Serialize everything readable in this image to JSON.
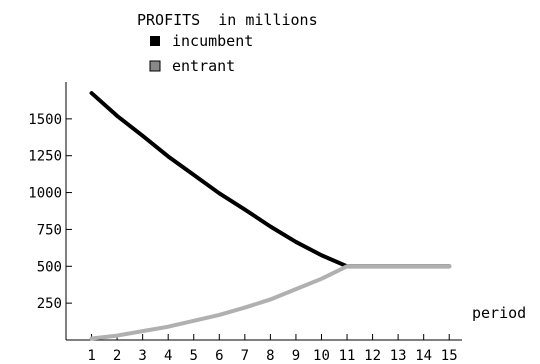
{
  "chart_data": {
    "type": "line",
    "title": "PROFITS  in millions",
    "xlabel": "period",
    "ylabel": "",
    "x": [
      1,
      2,
      3,
      4,
      5,
      6,
      7,
      8,
      9,
      10,
      11,
      12,
      13,
      14,
      15
    ],
    "x_tick_labels": [
      "1",
      "2",
      "3",
      "4",
      "5",
      "6",
      "7",
      "8",
      "9",
      "10",
      "11",
      "12",
      "13",
      "14",
      "15"
    ],
    "y_ticks": [
      250,
      500,
      750,
      1000,
      1250,
      1500
    ],
    "y_tick_labels": [
      "250",
      "500",
      "750",
      "1000",
      "1250",
      "1500"
    ],
    "xlim": [
      0,
      15.5
    ],
    "ylim": [
      0,
      1750
    ],
    "grid": false,
    "legend": "top-center",
    "series": [
      {
        "name": "incumbent",
        "color": "#000000",
        "legend_swatch": "#000000",
        "values": [
          1675,
          1520,
          1385,
          1245,
          1120,
          995,
          885,
          770,
          665,
          575,
          500,
          500,
          500,
          500,
          500
        ]
      },
      {
        "name": "entrant",
        "color": "#b0b0b0",
        "legend_swatch": "#888888",
        "values": [
          10,
          30,
          60,
          90,
          130,
          170,
          220,
          275,
          345,
          415,
          500,
          500,
          500,
          500,
          500
        ]
      }
    ]
  }
}
